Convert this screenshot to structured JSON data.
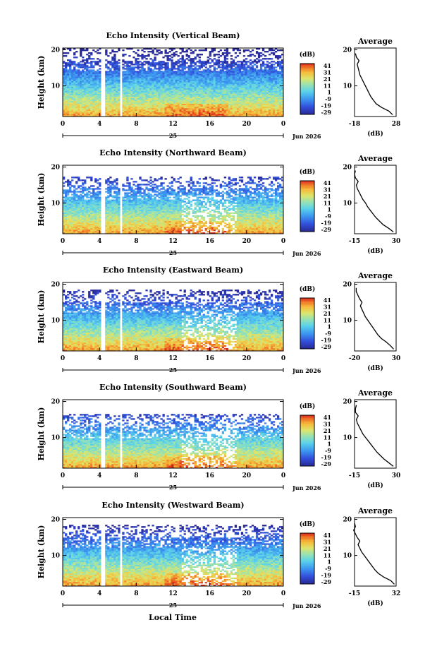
{
  "figure": {
    "xlabel": "Local Time",
    "date_label": "Jun 2026",
    "day_label": "25",
    "ylabel": "Height (km)",
    "colorbar_unit": "(dB)",
    "colorbar_ticks": [
      "41",
      "31",
      "21",
      "11",
      "1",
      "-9",
      "-19",
      "-29"
    ],
    "avg_title": "Average",
    "avg_xlabel": "(dB)",
    "colors": {
      "low": "#3040c0",
      "mid": "#70d0e0",
      "high": "#f08020",
      "max": "#e02020"
    }
  },
  "chart_data": [
    {
      "type": "heatmap",
      "title": "Echo Intensity (Vertical Beam)",
      "x_ticks": [
        "0",
        "4",
        "8",
        "12",
        "16",
        "20",
        "0"
      ],
      "y_ticks": [
        "20",
        "10"
      ],
      "xlim": [
        0,
        24
      ],
      "ylim": [
        1.5,
        20.5
      ],
      "clim": [
        -29,
        41
      ],
      "data_gaps_hours": [
        [
          4.2,
          4.6
        ],
        [
          6.2,
          6.5
        ]
      ],
      "dense_top_km": 19,
      "average_profile": {
        "x_ticks": [
          "-18",
          "28"
        ],
        "xlim": [
          -18,
          28
        ],
        "heights": [
          2,
          3,
          4,
          5,
          6,
          7,
          8,
          9,
          10,
          11,
          12,
          13,
          14,
          15,
          16,
          17,
          18,
          19
        ],
        "values": [
          24,
          20,
          12,
          6,
          3,
          0,
          -2,
          -4,
          -6,
          -8,
          -10,
          -12,
          -13,
          -14,
          -15,
          -13,
          -16,
          -17
        ]
      }
    },
    {
      "type": "heatmap",
      "title": "Echo Intensity (Northward Beam)",
      "x_ticks": [
        "0",
        "4",
        "8",
        "12",
        "16",
        "20",
        "0"
      ],
      "y_ticks": [
        "20",
        "10"
      ],
      "xlim": [
        0,
        24
      ],
      "ylim": [
        1.5,
        20.5
      ],
      "clim": [
        -29,
        41
      ],
      "data_gaps_hours": [
        [
          4.2,
          4.6
        ],
        [
          6.2,
          6.5
        ]
      ],
      "dense_top_km": 16,
      "average_profile": {
        "x_ticks": [
          "-15",
          "30"
        ],
        "xlim": [
          -15,
          30
        ],
        "heights": [
          2,
          3,
          4,
          5,
          6,
          7,
          8,
          9,
          10,
          11,
          12,
          13,
          14,
          15,
          16,
          17,
          18,
          19
        ],
        "values": [
          27,
          22,
          16,
          12,
          8,
          5,
          2,
          -1,
          -3,
          -6,
          -8,
          -10,
          -12,
          -13,
          -11,
          -14,
          -15,
          -14
        ]
      }
    },
    {
      "type": "heatmap",
      "title": "Echo Intensity (Eastward Beam)",
      "x_ticks": [
        "0",
        "4",
        "8",
        "12",
        "16",
        "20",
        "0"
      ],
      "y_ticks": [
        "20",
        "10"
      ],
      "xlim": [
        0,
        24
      ],
      "ylim": [
        1.5,
        20.5
      ],
      "clim": [
        -29,
        41
      ],
      "data_gaps_hours": [
        [
          4.2,
          4.6
        ],
        [
          6.2,
          6.5
        ]
      ],
      "dense_top_km": 17,
      "average_profile": {
        "x_ticks": [
          "-20",
          "30"
        ],
        "xlim": [
          -20,
          30
        ],
        "heights": [
          2,
          3,
          4,
          5,
          6,
          7,
          8,
          9,
          10,
          11,
          12,
          13,
          14,
          15,
          16,
          17,
          18,
          19
        ],
        "values": [
          27,
          23,
          18,
          12,
          8,
          5,
          2,
          -1,
          -4,
          -7,
          -9,
          -11,
          -13,
          -11,
          -14,
          -16,
          -18,
          -18
        ]
      }
    },
    {
      "type": "heatmap",
      "title": "Echo Intensity (Southward Beam)",
      "x_ticks": [
        "0",
        "4",
        "8",
        "12",
        "16",
        "20",
        "0"
      ],
      "y_ticks": [
        "20",
        "10"
      ],
      "xlim": [
        0,
        24
      ],
      "ylim": [
        1.5,
        20.5
      ],
      "clim": [
        -29,
        41
      ],
      "data_gaps_hours": [
        [
          4.2,
          4.6
        ],
        [
          6.2,
          6.5
        ]
      ],
      "dense_top_km": 15,
      "average_profile": {
        "x_ticks": [
          "-15",
          "30"
        ],
        "xlim": [
          -15,
          30
        ],
        "heights": [
          2,
          3,
          4,
          5,
          6,
          7,
          8,
          9,
          10,
          11,
          12,
          13,
          14,
          15,
          16,
          17,
          18,
          19
        ],
        "values": [
          27,
          22,
          17,
          13,
          9,
          6,
          3,
          0,
          -3,
          -6,
          -8,
          -10,
          -12,
          -13,
          -11,
          -14,
          -14,
          -13
        ]
      }
    },
    {
      "type": "heatmap",
      "title": "Echo Intensity (Westward Beam)",
      "x_ticks": [
        "0",
        "4",
        "8",
        "12",
        "16",
        "20",
        "0"
      ],
      "y_ticks": [
        "20",
        "10"
      ],
      "xlim": [
        0,
        24
      ],
      "ylim": [
        1.5,
        20.5
      ],
      "clim": [
        -29,
        41
      ],
      "data_gaps_hours": [
        [
          4.2,
          4.6
        ],
        [
          6.2,
          6.5
        ]
      ],
      "dense_top_km": 17,
      "average_profile": {
        "x_ticks": [
          "-15",
          "32"
        ],
        "xlim": [
          -15,
          32
        ],
        "heights": [
          2,
          3,
          4,
          5,
          6,
          7,
          8,
          9,
          10,
          11,
          12,
          13,
          14,
          15,
          16,
          17,
          18,
          19
        ],
        "values": [
          30,
          26,
          18,
          12,
          8,
          5,
          2,
          -1,
          -4,
          -7,
          -9,
          -11,
          -9,
          -12,
          -14,
          -16,
          -14,
          -15
        ]
      }
    }
  ]
}
